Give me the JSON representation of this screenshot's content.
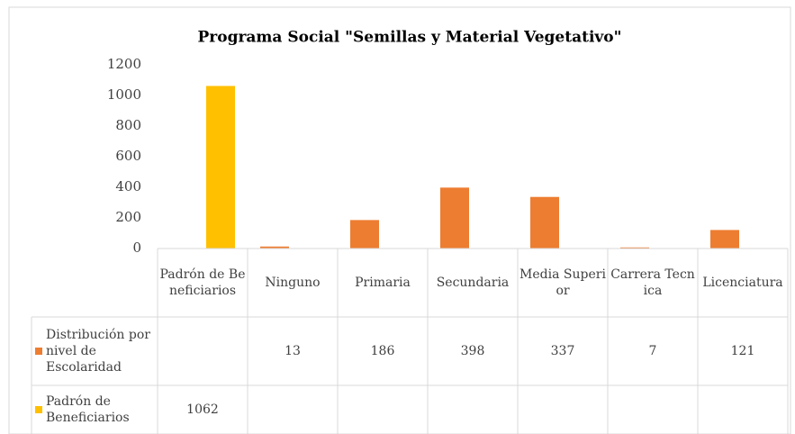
{
  "chart_data": {
    "type": "bar",
    "title": "Programa Social \"Semillas y Material Vegetativo\"",
    "categories": [
      "Padrón de Beneficiarios",
      "Ninguno",
      "Primaria",
      "Secundaria",
      "Media Superior",
      "Carrera Tecnica",
      "Licenciatura"
    ],
    "series": [
      {
        "name": "Distribución por nivel de Escolaridad",
        "color": "#ed7d31",
        "values": [
          null,
          13,
          186,
          398,
          337,
          7,
          121
        ]
      },
      {
        "name": "Padrón de Beneficiarios",
        "color": "#ffc000",
        "values": [
          1062,
          null,
          null,
          null,
          null,
          null,
          null
        ]
      }
    ],
    "ylim": [
      0,
      1200
    ],
    "yticks": [
      0,
      200,
      400,
      600,
      800,
      1000,
      1200
    ],
    "grid": false,
    "data_table": true
  }
}
